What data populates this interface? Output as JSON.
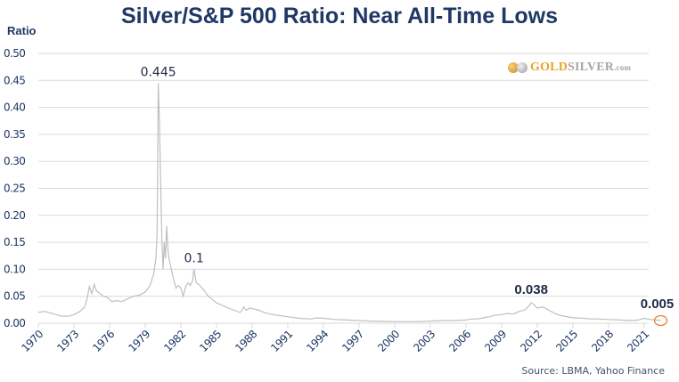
{
  "chart_data": {
    "type": "line",
    "title": "Silver/S&P 500 Ratio: Near All-Time Lows",
    "ylabel": "Ratio",
    "xlabel": "",
    "ylim": [
      0,
      0.5
    ],
    "xlim": [
      1970,
      2022.6
    ],
    "yticks": [
      "0.00",
      "0.05",
      "0.10",
      "0.15",
      "0.20",
      "0.25",
      "0.30",
      "0.35",
      "0.40",
      "0.45",
      "0.50"
    ],
    "ytick_values": [
      0,
      0.05,
      0.1,
      0.15,
      0.2,
      0.25,
      0.3,
      0.35,
      0.4,
      0.45,
      0.5
    ],
    "xticks": [
      "1970",
      "1973",
      "1976",
      "1979",
      "1982",
      "1985",
      "1988",
      "1991",
      "1994",
      "1997",
      "2000",
      "2003",
      "2006",
      "2009",
      "2012",
      "2015",
      "2018",
      "2021"
    ],
    "grid": true,
    "series": [
      {
        "name": "Silver/S&P 500",
        "color": "#bfbfbf",
        "x": [
          1970.0,
          1970.5,
          1971.0,
          1971.5,
          1972.0,
          1972.5,
          1973.0,
          1973.5,
          1973.9,
          1974.1,
          1974.3,
          1974.5,
          1974.7,
          1974.9,
          1975.2,
          1975.5,
          1975.8,
          1976.2,
          1976.6,
          1977.0,
          1977.5,
          1978.0,
          1978.5,
          1979.0,
          1979.4,
          1979.7,
          1979.9,
          1980.0,
          1980.05,
          1980.1,
          1980.2,
          1980.3,
          1980.4,
          1980.5,
          1980.6,
          1980.7,
          1980.8,
          1980.9,
          1981.0,
          1981.2,
          1981.4,
          1981.6,
          1981.8,
          1982.0,
          1982.2,
          1982.4,
          1982.6,
          1982.8,
          1983.0,
          1983.1,
          1983.3,
          1983.5,
          1983.8,
          1984.0,
          1984.3,
          1984.6,
          1985.0,
          1985.5,
          1986.0,
          1986.5,
          1987.0,
          1987.3,
          1987.5,
          1987.8,
          1988.2,
          1988.6,
          1989.0,
          1989.5,
          1990.0,
          1991.0,
          1992.0,
          1993.0,
          1993.5,
          1994.0,
          1995.0,
          1996.0,
          1997.0,
          1998.0,
          1999.0,
          2000.0,
          2001.0,
          2002.0,
          2003.0,
          2004.0,
          2005.0,
          2006.0,
          2006.5,
          2007.0,
          2007.5,
          2008.0,
          2008.5,
          2009.0,
          2009.5,
          2010.0,
          2010.5,
          2011.0,
          2011.3,
          2011.5,
          2011.7,
          2012.0,
          2012.5,
          2013.0,
          2013.5,
          2014.0,
          2015.0,
          2016.0,
          2016.5,
          2017.0,
          2018.0,
          2019.0,
          2020.0,
          2020.5,
          2021.0,
          2021.5,
          2022.0,
          2022.4
        ],
        "values": [
          0.02,
          0.022,
          0.019,
          0.016,
          0.013,
          0.013,
          0.016,
          0.022,
          0.03,
          0.045,
          0.068,
          0.055,
          0.072,
          0.06,
          0.055,
          0.05,
          0.048,
          0.04,
          0.042,
          0.04,
          0.045,
          0.05,
          0.052,
          0.058,
          0.07,
          0.09,
          0.12,
          0.17,
          0.3,
          0.445,
          0.37,
          0.26,
          0.16,
          0.1,
          0.15,
          0.12,
          0.18,
          0.14,
          0.12,
          0.1,
          0.08,
          0.065,
          0.07,
          0.065,
          0.05,
          0.068,
          0.075,
          0.07,
          0.08,
          0.1,
          0.075,
          0.072,
          0.065,
          0.06,
          0.05,
          0.045,
          0.038,
          0.033,
          0.028,
          0.024,
          0.02,
          0.03,
          0.024,
          0.028,
          0.026,
          0.024,
          0.02,
          0.017,
          0.015,
          0.012,
          0.009,
          0.008,
          0.01,
          0.009,
          0.007,
          0.006,
          0.005,
          0.004,
          0.0035,
          0.003,
          0.003,
          0.003,
          0.004,
          0.005,
          0.005,
          0.006,
          0.008,
          0.008,
          0.01,
          0.012,
          0.015,
          0.016,
          0.018,
          0.017,
          0.022,
          0.025,
          0.032,
          0.038,
          0.035,
          0.028,
          0.03,
          0.024,
          0.018,
          0.014,
          0.01,
          0.009,
          0.008,
          0.008,
          0.007,
          0.006,
          0.005,
          0.006,
          0.009,
          0.007,
          0.006,
          0.005
        ]
      }
    ],
    "annotations": [
      {
        "text": "0.445",
        "x": 1980.1,
        "y": 0.445,
        "bold": false
      },
      {
        "text": "0.1",
        "x": 1983.1,
        "y": 0.1,
        "bold": false
      },
      {
        "text": "0.038",
        "x": 2011.5,
        "y": 0.038,
        "bold": true
      },
      {
        "text": "0.005",
        "x": 2022.4,
        "y": 0.005,
        "bold": true
      }
    ],
    "highlight": {
      "x": 2022.4,
      "y": 0.005,
      "color": "#ed7d31"
    },
    "source": "Source: LBMA, Yahoo Finance"
  },
  "logo": {
    "gold": "GOLD",
    "silver": "SILVER",
    "com": ".com",
    "gold_color": "#e8a525",
    "silver_color": "#a6a6a6"
  }
}
